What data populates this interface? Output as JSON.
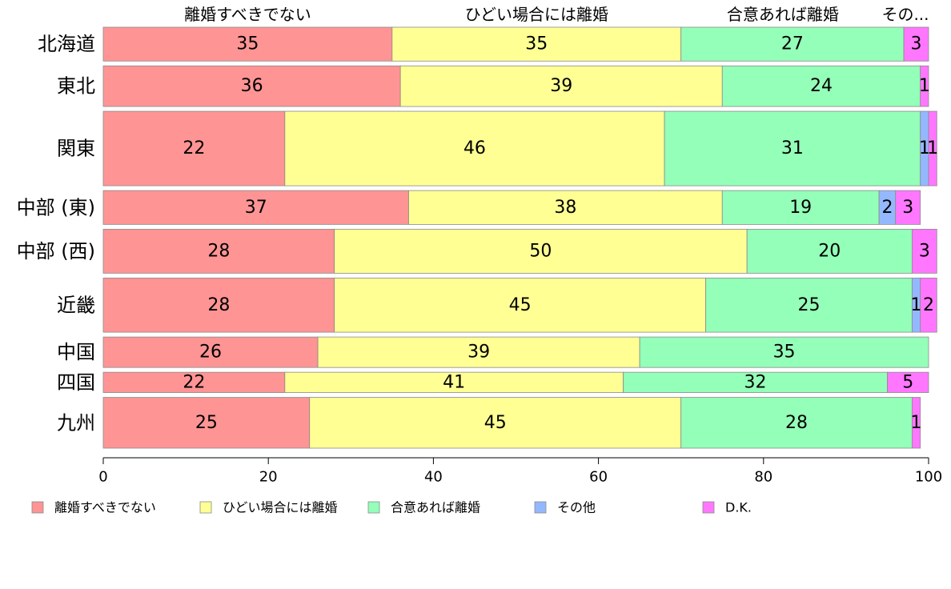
{
  "chart_data": {
    "type": "bar",
    "orientation": "horizontal",
    "stacked": true,
    "title": "",
    "xlabel": "",
    "ylabel": "",
    "xlim": [
      0,
      100
    ],
    "x_ticks": [
      "0",
      "20",
      "40",
      "60",
      "80",
      "100"
    ],
    "top_labels": [
      "離婚すべきでない",
      "ひどい場合には離婚",
      "合意あれば離婚",
      "その..."
    ],
    "categories": [
      "北海道",
      "東北",
      "関東",
      "中部 (東)",
      "中部 (西)",
      "近畿",
      "中国",
      "四国",
      "九州"
    ],
    "row_weights": [
      1.0,
      1.2,
      2.2,
      1.0,
      1.3,
      1.6,
      0.9,
      0.6,
      1.5
    ],
    "series": [
      {
        "name": "離婚すべきでない",
        "color": "#ff9494",
        "values": [
          35,
          36,
          22,
          37,
          28,
          28,
          26,
          22,
          25
        ]
      },
      {
        "name": "ひどい場合には離婚",
        "color": "#ffff94",
        "values": [
          35,
          39,
          46,
          38,
          50,
          45,
          39,
          41,
          45
        ]
      },
      {
        "name": "合意あれば離婚",
        "color": "#94ffb8",
        "values": [
          27,
          24,
          31,
          19,
          20,
          25,
          35,
          32,
          28
        ]
      },
      {
        "name": "その他",
        "color": "#94b8ff",
        "values": [
          0,
          0,
          1,
          2,
          0,
          1,
          0,
          0,
          0
        ]
      },
      {
        "name": "D.K.",
        "color": "#ff77ff",
        "values": [
          3,
          1,
          1,
          3,
          3,
          2,
          0,
          5,
          1
        ]
      }
    ],
    "legend_position": "bottom",
    "grid": false
  }
}
